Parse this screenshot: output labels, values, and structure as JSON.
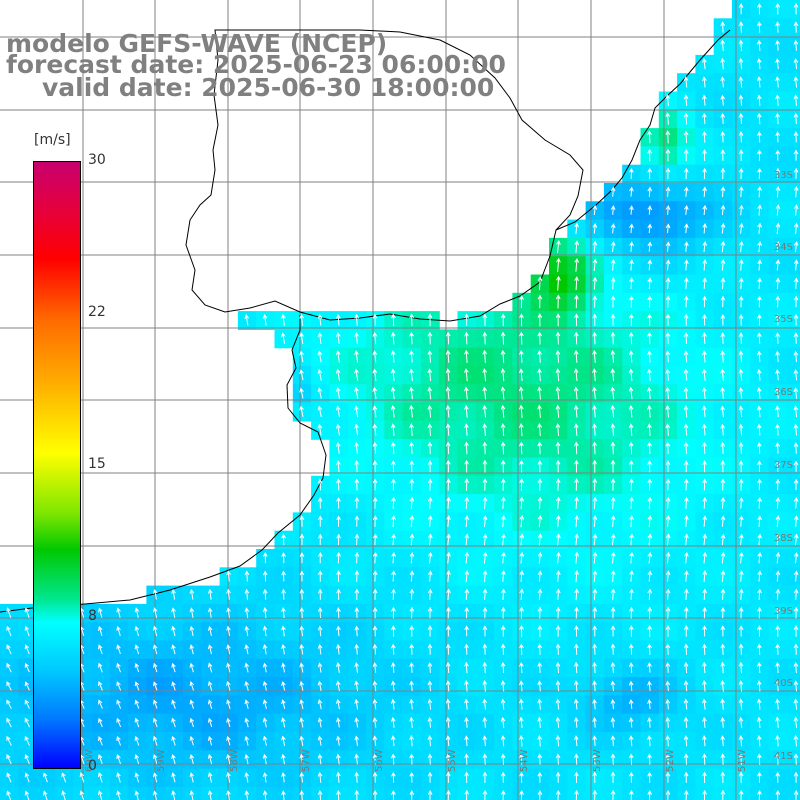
{
  "title": {
    "model": "modelo GEFS-WAVE (NCEP)",
    "forecast": "forecast date: 2025-06-23 06:00:00",
    "valid": "valid date: 2025-06-30 18:00:00"
  },
  "colorbar": {
    "unit": "[m/s]",
    "range": [
      0,
      30
    ],
    "ticks": [
      "30",
      "22",
      "15",
      "8",
      "0"
    ]
  },
  "lat_labels": [
    "33S",
    "34S",
    "35S",
    "36S",
    "37S",
    "38S",
    "39S",
    "40S",
    "41S"
  ],
  "lon_labels": [
    "60W",
    "59W",
    "58W",
    "57W",
    "56W",
    "55W",
    "54W",
    "53W",
    "52W",
    "51W"
  ],
  "colors": {
    "land": "#ffffff",
    "coast": "#000000",
    "grid": "#808080",
    "arrows": "#ffffff",
    "title": "#808080"
  }
}
